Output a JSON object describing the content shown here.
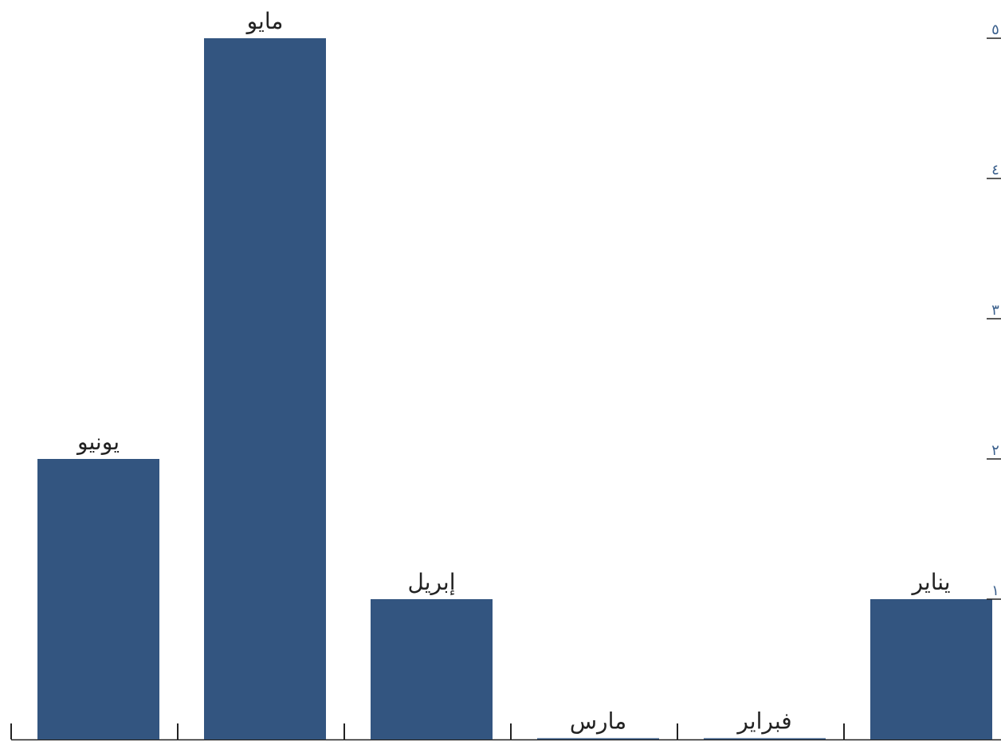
{
  "chart_data": {
    "type": "bar",
    "categories": [
      "يونيو",
      "مايو",
      "إبريل",
      "مارس",
      "فبراير",
      "يناير"
    ],
    "values": [
      2,
      5,
      1,
      0,
      0,
      1
    ],
    "ylim": [
      0,
      5
    ],
    "y_ticks": [
      {
        "value": 1,
        "label": "١"
      },
      {
        "value": 2,
        "label": "٢"
      },
      {
        "value": 3,
        "label": "٣"
      },
      {
        "value": 4,
        "label": "٤"
      },
      {
        "value": 5,
        "label": "٥"
      }
    ],
    "x_axis_direction": "right-to-left",
    "y_axis_side": "right",
    "grid": false,
    "bar_color": "#335580"
  }
}
